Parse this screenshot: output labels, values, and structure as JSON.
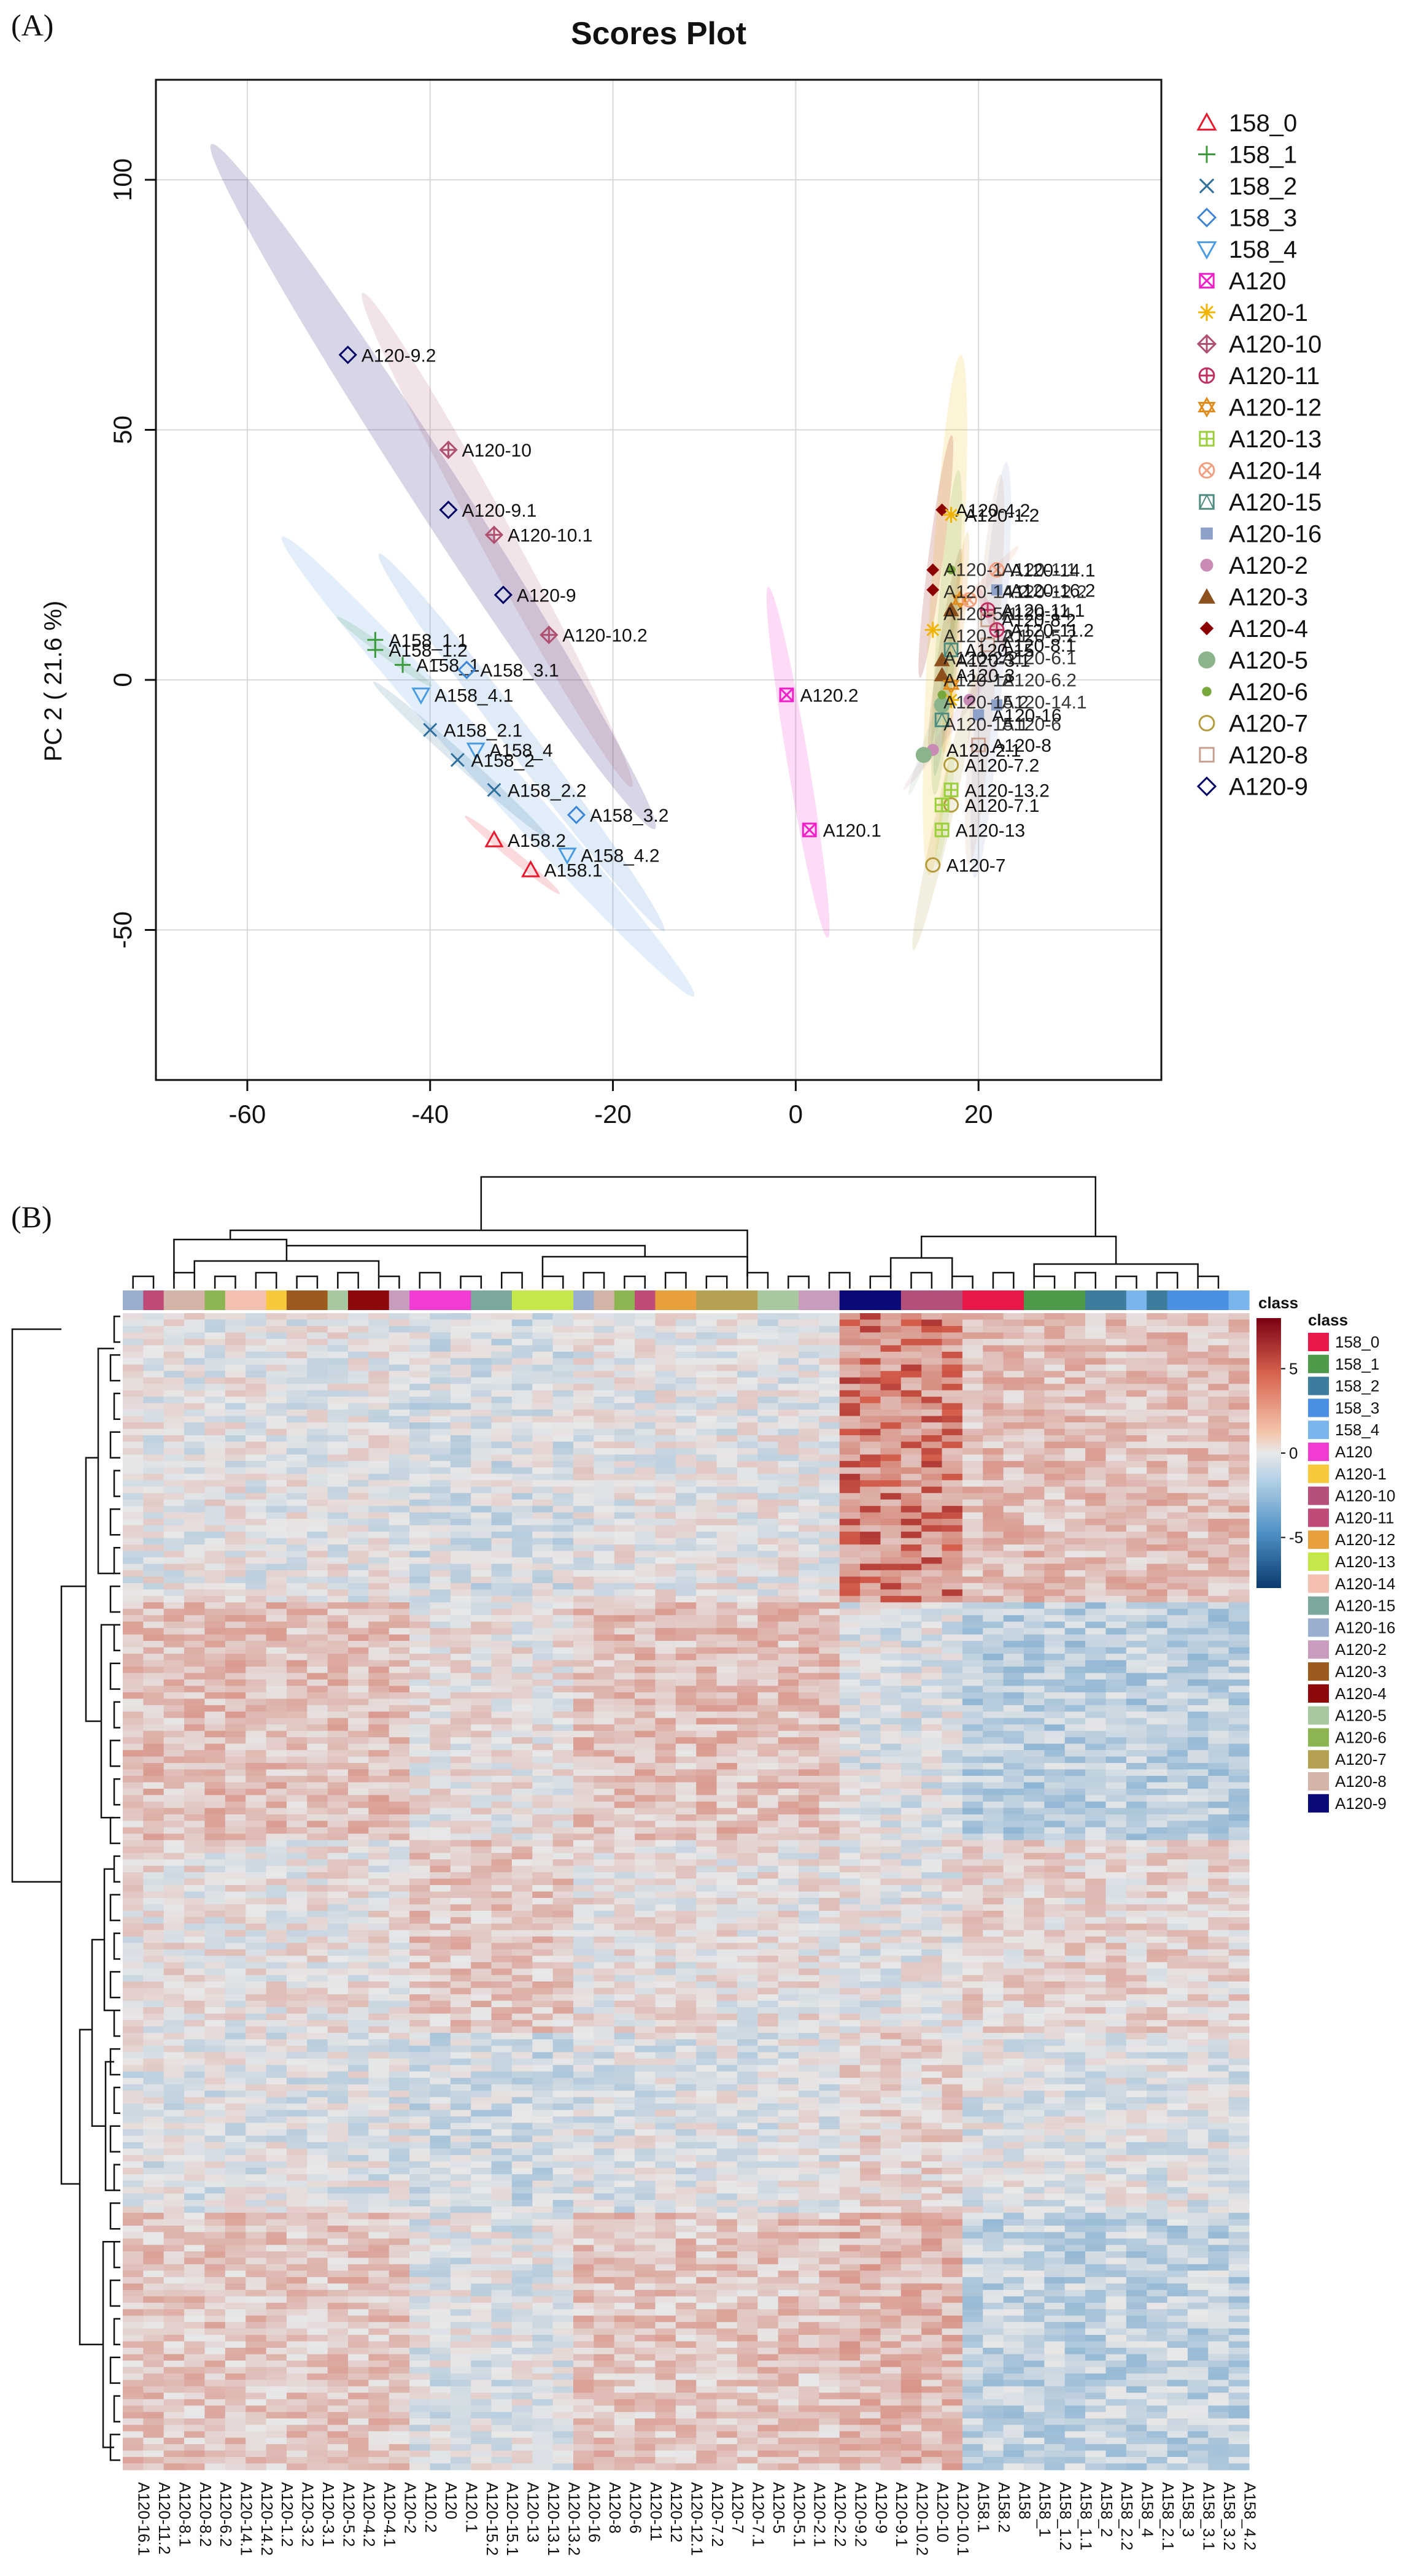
{
  "chart_data": [
    {
      "type": "scatter",
      "panel_label": "(A)",
      "title": "Scores Plot",
      "xlabel": "",
      "ylabel": "PC 2 ( 21.6 %)",
      "xlim": [
        -70,
        40
      ],
      "ylim": [
        -80,
        120
      ],
      "xticks": [
        -60,
        -40,
        -20,
        0,
        20
      ],
      "yticks": [
        -50,
        0,
        50,
        100
      ],
      "grid": true,
      "legend_position": "right",
      "legend": [
        {
          "name": "158_0",
          "color": "#e8192c",
          "marker": "triangle"
        },
        {
          "name": "158_1",
          "color": "#3c9b3c",
          "marker": "plus"
        },
        {
          "name": "158_2",
          "color": "#2e6f9e",
          "marker": "x"
        },
        {
          "name": "158_3",
          "color": "#3d85d6",
          "marker": "diamond"
        },
        {
          "name": "158_4",
          "color": "#4a9be0",
          "marker": "triangle-down"
        },
        {
          "name": "A120",
          "color": "#f020c8",
          "marker": "square-x"
        },
        {
          "name": "A120-1",
          "color": "#f0b400",
          "marker": "star"
        },
        {
          "name": "A120-10",
          "color": "#b05070",
          "marker": "diamond-plus"
        },
        {
          "name": "A120-11",
          "color": "#c03060",
          "marker": "circle-plus"
        },
        {
          "name": "A120-12",
          "color": "#e08c1c",
          "marker": "hexagram"
        },
        {
          "name": "A120-13",
          "color": "#9bcf3c",
          "marker": "square-plus"
        },
        {
          "name": "A120-14",
          "color": "#f0a080",
          "marker": "circle-x"
        },
        {
          "name": "A120-15",
          "color": "#4e8c80",
          "marker": "square-triangle"
        },
        {
          "name": "A120-16",
          "color": "#8ca0c8",
          "marker": "square-filled"
        },
        {
          "name": "A120-2",
          "color": "#c88cb4",
          "marker": "circle-filled"
        },
        {
          "name": "A120-3",
          "color": "#8c501c",
          "marker": "triangle-filled"
        },
        {
          "name": "A120-4",
          "color": "#8c0000",
          "marker": "diamond-filled"
        },
        {
          "name": "A120-5",
          "color": "#8cb48c",
          "marker": "circle-filled-large"
        },
        {
          "name": "A120-6",
          "color": "#78a83c",
          "marker": "circle-filled-small"
        },
        {
          "name": "A120-7",
          "color": "#b49c3c",
          "marker": "circle"
        },
        {
          "name": "A120-8",
          "color": "#c8a090",
          "marker": "square"
        },
        {
          "name": "A120-9",
          "color": "#000064",
          "marker": "diamond"
        }
      ],
      "points": [
        {
          "label": "A120-9.2",
          "group": "A120-9",
          "x": -49,
          "y": 65
        },
        {
          "label": "A120-10",
          "group": "A120-10",
          "x": -38,
          "y": 46
        },
        {
          "label": "A120-9.1",
          "group": "A120-9",
          "x": -38,
          "y": 34
        },
        {
          "label": "A120-10.1",
          "group": "A120-10",
          "x": -33,
          "y": 29
        },
        {
          "label": "A120-9",
          "group": "A120-9",
          "x": -32,
          "y": 17
        },
        {
          "label": "A120-10.2",
          "group": "A120-10",
          "x": -27,
          "y": 9
        },
        {
          "label": "A158_1.1",
          "group": "158_1",
          "x": -46,
          "y": 8
        },
        {
          "label": "A158_1.2",
          "group": "158_1",
          "x": -46,
          "y": 6
        },
        {
          "label": "A158_1",
          "group": "158_1",
          "x": -43,
          "y": 3
        },
        {
          "label": "A158_3.1",
          "group": "158_3",
          "x": -36,
          "y": 2
        },
        {
          "label": "A158_4.1",
          "group": "158_4",
          "x": -41,
          "y": -3
        },
        {
          "label": "A158_2.1",
          "group": "158_2",
          "x": -40,
          "y": -10
        },
        {
          "label": "A158_4",
          "group": "158_4",
          "x": -35,
          "y": -14
        },
        {
          "label": "A158_2",
          "group": "158_2",
          "x": -37,
          "y": -16
        },
        {
          "label": "A158_2.2",
          "group": "158_2",
          "x": -33,
          "y": -22
        },
        {
          "label": "A158_3.2",
          "group": "158_3",
          "x": -24,
          "y": -27
        },
        {
          "label": "A158.2",
          "group": "158_0",
          "x": -33,
          "y": -32
        },
        {
          "label": "A158_4.2",
          "group": "158_4",
          "x": -25,
          "y": -35
        },
        {
          "label": "A158.1",
          "group": "158_0",
          "x": -29,
          "y": -38
        },
        {
          "label": "A120.2",
          "group": "A120",
          "x": -1,
          "y": -3
        },
        {
          "label": "A120.1",
          "group": "A120",
          "x": 1.5,
          "y": -30
        },
        {
          "label": "A120-4.2",
          "group": "A120-4",
          "x": 16,
          "y": 34
        },
        {
          "label": "A120-1.2",
          "group": "A120-1",
          "x": 17,
          "y": 33
        },
        {
          "label": "A120-14.1",
          "group": "A120-14",
          "x": 22,
          "y": 22
        },
        {
          "label": "A120-16.2",
          "group": "A120-16",
          "x": 22,
          "y": 18
        },
        {
          "label": "A120-11.1",
          "group": "A120-11",
          "x": 21,
          "y": 14
        },
        {
          "label": "A120-8.2",
          "group": "A120-8",
          "x": 21,
          "y": 12
        },
        {
          "label": "A120-11.2",
          "group": "A120-11",
          "x": 22,
          "y": 10
        },
        {
          "label": "A120-8.1",
          "group": "A120-8",
          "x": 21,
          "y": 7
        },
        {
          "label": "A120-3.1",
          "group": "A120-3",
          "x": 16,
          "y": 4
        },
        {
          "label": "A120-15",
          "group": "A120-15",
          "x": 17,
          "y": 6
        },
        {
          "label": "A120-3",
          "group": "A120-3",
          "x": 16,
          "y": 1
        },
        {
          "label": "A120-16",
          "group": "A120-16",
          "x": 20,
          "y": -7
        },
        {
          "label": "A120-8",
          "group": "A120-8",
          "x": 20,
          "y": -13
        },
        {
          "label": "A120-2.1",
          "group": "A120-2",
          "x": 15,
          "y": -14
        },
        {
          "label": "A120-7.2",
          "group": "A120-7",
          "x": 17,
          "y": -17
        },
        {
          "label": "A120-13.2",
          "group": "A120-13",
          "x": 17,
          "y": -22
        },
        {
          "label": "A120-7.1",
          "group": "A120-7",
          "x": 17,
          "y": -25
        },
        {
          "label": "A120-13",
          "group": "A120-13",
          "x": 16,
          "y": -30
        },
        {
          "label": "A120-7",
          "group": "A120-7",
          "x": 15,
          "y": -37
        },
        {
          "label": "",
          "group": "A120-4",
          "x": 15,
          "y": 22
        },
        {
          "label": "",
          "group": "A120-4",
          "x": 15,
          "y": 18
        },
        {
          "label": "",
          "group": "A120-6",
          "x": 17,
          "y": 22
        },
        {
          "label": "",
          "group": "A120-12",
          "x": 18,
          "y": 16
        },
        {
          "label": "",
          "group": "A120-1",
          "x": 15,
          "y": 10
        },
        {
          "label": "",
          "group": "A120-3",
          "x": 17,
          "y": 14
        },
        {
          "label": "",
          "group": "A120-12",
          "x": 17,
          "y": -1
        },
        {
          "label": "",
          "group": "A120-1",
          "x": 17,
          "y": -4
        },
        {
          "label": "",
          "group": "A120-5",
          "x": 16,
          "y": -5
        },
        {
          "label": "",
          "group": "A120-15",
          "x": 16,
          "y": -8
        },
        {
          "label": "",
          "group": "A120-6",
          "x": 16,
          "y": -3
        },
        {
          "label": "",
          "group": "A120-14",
          "x": 19,
          "y": 16
        },
        {
          "label": "",
          "group": "A120-5",
          "x": 14,
          "y": -15
        },
        {
          "label": "",
          "group": "A120-2",
          "x": 19,
          "y": -4
        },
        {
          "label": "",
          "group": "A120-16",
          "x": 22,
          "y": -5
        },
        {
          "label": "",
          "group": "A120-13",
          "x": 16,
          "y": -25
        }
      ],
      "cluster_labels": [
        "A120-1",
        "A120-1.1",
        "A120-14.2",
        "A120-12.2",
        "A120-5.1",
        "A120-14",
        "A120-12.1",
        "A120-5.2",
        "A120-2.2",
        "A120-6.1",
        "A120-12",
        "A120-6.2",
        "A120-15.2",
        "A120-14.1",
        "A120-15.1",
        "A120-6"
      ]
    },
    {
      "type": "heatmap",
      "panel_label": "(B)",
      "color_scale_title": "class",
      "color_scale_ticks": [
        5,
        0,
        -5
      ],
      "columns": [
        "A120-16.1",
        "A120-11.2",
        "A120-8.1",
        "A120-8.2",
        "A120-6.2",
        "A120-14.1",
        "A120-14.2",
        "A120-1.2",
        "A120-3.2",
        "A120-3.1",
        "A120-5.2",
        "A120-4.2",
        "A120-4.1",
        "A120-2",
        "A120.2",
        "A120",
        "A120.1",
        "A120-15.2",
        "A120-15.1",
        "A120-13",
        "A120-13.1",
        "A120-13.2",
        "A120-16",
        "A120-8",
        "A120-6",
        "A120-11",
        "A120-12",
        "A120-12.1",
        "A120-7.2",
        "A120-7",
        "A120-7.1",
        "A120-5",
        "A120-5.1",
        "A120-2.1",
        "A120-2.2",
        "A120-9.2",
        "A120-9",
        "A120-9.1",
        "A120-10.2",
        "A120-10",
        "A120-10.1",
        "A158.1",
        "A158.2",
        "A158",
        "A158_1",
        "A158_1.2",
        "A158_1.1",
        "A158_2",
        "A158_2.2",
        "A158_4",
        "A158_2.1",
        "A158_3",
        "A158_3.1",
        "A158_3.2",
        "A158_4.2"
      ],
      "column_classes": [
        "A120-16",
        "A120-11",
        "A120-8",
        "A120-8",
        "A120-6",
        "A120-14",
        "A120-14",
        "A120-1",
        "A120-3",
        "A120-3",
        "A120-5",
        "A120-4",
        "A120-4",
        "A120-2",
        "A120",
        "A120",
        "A120",
        "A120-15",
        "A120-15",
        "A120-13",
        "A120-13",
        "A120-13",
        "A120-16",
        "A120-8",
        "A120-6",
        "A120-11",
        "A120-12",
        "A120-12",
        "A120-7",
        "A120-7",
        "A120-7",
        "A120-5",
        "A120-5",
        "A120-2",
        "A120-2",
        "A120-9",
        "A120-9",
        "A120-9",
        "A120-10",
        "A120-10",
        "A120-10",
        "158_0",
        "158_0",
        "158_0",
        "158_1",
        "158_1",
        "158_1",
        "158_2",
        "158_2",
        "158_4",
        "158_2",
        "158_3",
        "158_3",
        "158_3",
        "158_4"
      ],
      "class_legend_title": "class",
      "class_legend": [
        {
          "name": "158_0",
          "color": "#e8194a"
        },
        {
          "name": "158_1",
          "color": "#4f9a4a"
        },
        {
          "name": "158_2",
          "color": "#3c7d9e"
        },
        {
          "name": "158_3",
          "color": "#4a90e2"
        },
        {
          "name": "158_4",
          "color": "#7ab4ec"
        },
        {
          "name": "A120",
          "color": "#f03cd2"
        },
        {
          "name": "A120-1",
          "color": "#f8c83c"
        },
        {
          "name": "A120-10",
          "color": "#b4507a"
        },
        {
          "name": "A120-11",
          "color": "#c04a78"
        },
        {
          "name": "A120-12",
          "color": "#e8a03c"
        },
        {
          "name": "A120-13",
          "color": "#c4e84a"
        },
        {
          "name": "A120-14",
          "color": "#f4c0b0"
        },
        {
          "name": "A120-15",
          "color": "#7aa89c"
        },
        {
          "name": "A120-16",
          "color": "#9aaed0"
        },
        {
          "name": "A120-2",
          "color": "#c89cbc"
        },
        {
          "name": "A120-3",
          "color": "#9c5a1e"
        },
        {
          "name": "A120-4",
          "color": "#8c0a0a"
        },
        {
          "name": "A120-5",
          "color": "#a8c8a0"
        },
        {
          "name": "A120-6",
          "color": "#8cb450"
        },
        {
          "name": "A120-7",
          "color": "#b4a050"
        },
        {
          "name": "A120-8",
          "color": "#d4b4a8"
        },
        {
          "name": "A120-9",
          "color": "#0a0a78"
        }
      ]
    }
  ]
}
